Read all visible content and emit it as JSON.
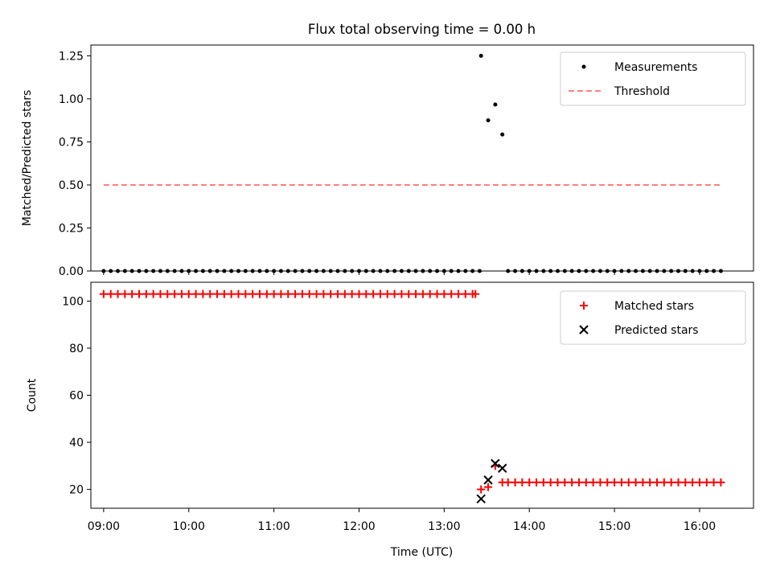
{
  "figure": {
    "title": "Flux total observing time = 0.00 h"
  },
  "chart_data": [
    {
      "type": "scatter",
      "panel": "top",
      "ylabel": "Matched/Predicted stars",
      "xlabel": "",
      "ylim": [
        0,
        1.3125
      ],
      "xlim": [
        "08:51",
        "16:38"
      ],
      "yticks": [
        0.0,
        0.25,
        0.5,
        0.75,
        1.0,
        1.25
      ],
      "ytick_labels": [
        "0.00",
        "0.25",
        "0.50",
        "0.75",
        "1.00",
        "1.25"
      ],
      "legend_position": "top-right",
      "grid": false,
      "series": [
        {
          "name": "Measurements",
          "kind": "points",
          "color": "#000000",
          "points": [
            {
              "x": "09:00",
              "y": 0
            },
            {
              "x": "09:05",
              "y": 0
            },
            {
              "x": "09:10",
              "y": 0
            },
            {
              "x": "09:15",
              "y": 0
            },
            {
              "x": "09:20",
              "y": 0
            },
            {
              "x": "09:25",
              "y": 0
            },
            {
              "x": "09:30",
              "y": 0
            },
            {
              "x": "09:35",
              "y": 0
            },
            {
              "x": "09:40",
              "y": 0
            },
            {
              "x": "09:45",
              "y": 0
            },
            {
              "x": "09:50",
              "y": 0
            },
            {
              "x": "09:55",
              "y": 0
            },
            {
              "x": "10:00",
              "y": 0
            },
            {
              "x": "10:05",
              "y": 0
            },
            {
              "x": "10:10",
              "y": 0
            },
            {
              "x": "10:15",
              "y": 0
            },
            {
              "x": "10:20",
              "y": 0
            },
            {
              "x": "10:25",
              "y": 0
            },
            {
              "x": "10:30",
              "y": 0
            },
            {
              "x": "10:35",
              "y": 0
            },
            {
              "x": "10:40",
              "y": 0
            },
            {
              "x": "10:45",
              "y": 0
            },
            {
              "x": "10:50",
              "y": 0
            },
            {
              "x": "10:55",
              "y": 0
            },
            {
              "x": "11:00",
              "y": 0
            },
            {
              "x": "11:05",
              "y": 0
            },
            {
              "x": "11:10",
              "y": 0
            },
            {
              "x": "11:15",
              "y": 0
            },
            {
              "x": "11:20",
              "y": 0
            },
            {
              "x": "11:25",
              "y": 0
            },
            {
              "x": "11:30",
              "y": 0
            },
            {
              "x": "11:35",
              "y": 0
            },
            {
              "x": "11:40",
              "y": 0
            },
            {
              "x": "11:45",
              "y": 0
            },
            {
              "x": "11:50",
              "y": 0
            },
            {
              "x": "11:55",
              "y": 0
            },
            {
              "x": "12:00",
              "y": 0
            },
            {
              "x": "12:05",
              "y": 0
            },
            {
              "x": "12:10",
              "y": 0
            },
            {
              "x": "12:15",
              "y": 0
            },
            {
              "x": "12:20",
              "y": 0
            },
            {
              "x": "12:25",
              "y": 0
            },
            {
              "x": "12:30",
              "y": 0
            },
            {
              "x": "12:35",
              "y": 0
            },
            {
              "x": "12:40",
              "y": 0
            },
            {
              "x": "12:45",
              "y": 0
            },
            {
              "x": "12:50",
              "y": 0
            },
            {
              "x": "12:55",
              "y": 0
            },
            {
              "x": "13:00",
              "y": 0
            },
            {
              "x": "13:05",
              "y": 0
            },
            {
              "x": "13:10",
              "y": 0
            },
            {
              "x": "13:15",
              "y": 0
            },
            {
              "x": "13:20",
              "y": 0
            },
            {
              "x": "13:25",
              "y": 0
            },
            {
              "x": "13:26",
              "y": 1.25
            },
            {
              "x": "13:31",
              "y": 0.875
            },
            {
              "x": "13:36",
              "y": 0.967
            },
            {
              "x": "13:41",
              "y": 0.793
            },
            {
              "x": "13:45",
              "y": 0
            },
            {
              "x": "13:50",
              "y": 0
            },
            {
              "x": "13:55",
              "y": 0
            },
            {
              "x": "14:00",
              "y": 0
            },
            {
              "x": "14:05",
              "y": 0
            },
            {
              "x": "14:10",
              "y": 0
            },
            {
              "x": "14:15",
              "y": 0
            },
            {
              "x": "14:20",
              "y": 0
            },
            {
              "x": "14:25",
              "y": 0
            },
            {
              "x": "14:30",
              "y": 0
            },
            {
              "x": "14:35",
              "y": 0
            },
            {
              "x": "14:40",
              "y": 0
            },
            {
              "x": "14:45",
              "y": 0
            },
            {
              "x": "14:50",
              "y": 0
            },
            {
              "x": "14:55",
              "y": 0
            },
            {
              "x": "15:00",
              "y": 0
            },
            {
              "x": "15:05",
              "y": 0
            },
            {
              "x": "15:10",
              "y": 0
            },
            {
              "x": "15:15",
              "y": 0
            },
            {
              "x": "15:20",
              "y": 0
            },
            {
              "x": "15:25",
              "y": 0
            },
            {
              "x": "15:30",
              "y": 0
            },
            {
              "x": "15:35",
              "y": 0
            },
            {
              "x": "15:40",
              "y": 0
            },
            {
              "x": "15:45",
              "y": 0
            },
            {
              "x": "15:50",
              "y": 0
            },
            {
              "x": "15:55",
              "y": 0
            },
            {
              "x": "16:00",
              "y": 0
            },
            {
              "x": "16:05",
              "y": 0
            },
            {
              "x": "16:10",
              "y": 0
            },
            {
              "x": "16:15",
              "y": 0
            }
          ]
        },
        {
          "name": "Threshold",
          "kind": "dashed-line",
          "color": "#ff7f7f",
          "points": [
            {
              "x": "09:00",
              "y": 0.5
            },
            {
              "x": "16:15",
              "y": 0.5
            }
          ]
        }
      ]
    },
    {
      "type": "scatter",
      "panel": "bottom",
      "xlabel": "Time (UTC)",
      "ylabel": "Count",
      "ylim": [
        12,
        108
      ],
      "xlim": [
        "08:51",
        "16:38"
      ],
      "yticks": [
        20,
        40,
        60,
        80,
        100
      ],
      "ytick_labels": [
        "20",
        "40",
        "60",
        "80",
        "100"
      ],
      "xticks": [
        "09:00",
        "10:00",
        "11:00",
        "12:00",
        "13:00",
        "14:00",
        "15:00",
        "16:00"
      ],
      "xtick_labels": [
        "09:00",
        "10:00",
        "11:00",
        "12:00",
        "13:00",
        "14:00",
        "15:00",
        "16:00"
      ],
      "legend_position": "top-right",
      "grid": false,
      "series": [
        {
          "name": "Matched stars",
          "kind": "plus",
          "color": "#ff0000",
          "points": [
            {
              "x": "09:00",
              "y": 103
            },
            {
              "x": "09:05",
              "y": 103
            },
            {
              "x": "09:10",
              "y": 103
            },
            {
              "x": "09:15",
              "y": 103
            },
            {
              "x": "09:20",
              "y": 103
            },
            {
              "x": "09:25",
              "y": 103
            },
            {
              "x": "09:30",
              "y": 103
            },
            {
              "x": "09:35",
              "y": 103
            },
            {
              "x": "09:40",
              "y": 103
            },
            {
              "x": "09:45",
              "y": 103
            },
            {
              "x": "09:50",
              "y": 103
            },
            {
              "x": "09:55",
              "y": 103
            },
            {
              "x": "10:00",
              "y": 103
            },
            {
              "x": "10:05",
              "y": 103
            },
            {
              "x": "10:10",
              "y": 103
            },
            {
              "x": "10:15",
              "y": 103
            },
            {
              "x": "10:20",
              "y": 103
            },
            {
              "x": "10:25",
              "y": 103
            },
            {
              "x": "10:30",
              "y": 103
            },
            {
              "x": "10:35",
              "y": 103
            },
            {
              "x": "10:40",
              "y": 103
            },
            {
              "x": "10:45",
              "y": 103
            },
            {
              "x": "10:50",
              "y": 103
            },
            {
              "x": "10:55",
              "y": 103
            },
            {
              "x": "11:00",
              "y": 103
            },
            {
              "x": "11:05",
              "y": 103
            },
            {
              "x": "11:10",
              "y": 103
            },
            {
              "x": "11:15",
              "y": 103
            },
            {
              "x": "11:20",
              "y": 103
            },
            {
              "x": "11:25",
              "y": 103
            },
            {
              "x": "11:30",
              "y": 103
            },
            {
              "x": "11:35",
              "y": 103
            },
            {
              "x": "11:40",
              "y": 103
            },
            {
              "x": "11:45",
              "y": 103
            },
            {
              "x": "11:50",
              "y": 103
            },
            {
              "x": "11:55",
              "y": 103
            },
            {
              "x": "12:00",
              "y": 103
            },
            {
              "x": "12:05",
              "y": 103
            },
            {
              "x": "12:10",
              "y": 103
            },
            {
              "x": "12:15",
              "y": 103
            },
            {
              "x": "12:20",
              "y": 103
            },
            {
              "x": "12:25",
              "y": 103
            },
            {
              "x": "12:30",
              "y": 103
            },
            {
              "x": "12:35",
              "y": 103
            },
            {
              "x": "12:40",
              "y": 103
            },
            {
              "x": "12:45",
              "y": 103
            },
            {
              "x": "12:50",
              "y": 103
            },
            {
              "x": "12:55",
              "y": 103
            },
            {
              "x": "13:00",
              "y": 103
            },
            {
              "x": "13:05",
              "y": 103
            },
            {
              "x": "13:10",
              "y": 103
            },
            {
              "x": "13:15",
              "y": 103
            },
            {
              "x": "13:20",
              "y": 103
            },
            {
              "x": "13:22",
              "y": 103
            },
            {
              "x": "13:26",
              "y": 20
            },
            {
              "x": "13:31",
              "y": 21
            },
            {
              "x": "13:36",
              "y": 30
            },
            {
              "x": "13:41",
              "y": 23
            },
            {
              "x": "13:45",
              "y": 23
            },
            {
              "x": "13:50",
              "y": 23
            },
            {
              "x": "13:55",
              "y": 23
            },
            {
              "x": "14:00",
              "y": 23
            },
            {
              "x": "14:05",
              "y": 23
            },
            {
              "x": "14:10",
              "y": 23
            },
            {
              "x": "14:15",
              "y": 23
            },
            {
              "x": "14:20",
              "y": 23
            },
            {
              "x": "14:25",
              "y": 23
            },
            {
              "x": "14:30",
              "y": 23
            },
            {
              "x": "14:35",
              "y": 23
            },
            {
              "x": "14:40",
              "y": 23
            },
            {
              "x": "14:45",
              "y": 23
            },
            {
              "x": "14:50",
              "y": 23
            },
            {
              "x": "14:55",
              "y": 23
            },
            {
              "x": "15:00",
              "y": 23
            },
            {
              "x": "15:05",
              "y": 23
            },
            {
              "x": "15:10",
              "y": 23
            },
            {
              "x": "15:15",
              "y": 23
            },
            {
              "x": "15:20",
              "y": 23
            },
            {
              "x": "15:25",
              "y": 23
            },
            {
              "x": "15:30",
              "y": 23
            },
            {
              "x": "15:35",
              "y": 23
            },
            {
              "x": "15:40",
              "y": 23
            },
            {
              "x": "15:45",
              "y": 23
            },
            {
              "x": "15:50",
              "y": 23
            },
            {
              "x": "15:55",
              "y": 23
            },
            {
              "x": "16:00",
              "y": 23
            },
            {
              "x": "16:05",
              "y": 23
            },
            {
              "x": "16:10",
              "y": 23
            },
            {
              "x": "16:15",
              "y": 23
            }
          ]
        },
        {
          "name": "Predicted stars",
          "kind": "x",
          "color": "#000000",
          "points": [
            {
              "x": "13:26",
              "y": 16
            },
            {
              "x": "13:31",
              "y": 24
            },
            {
              "x": "13:36",
              "y": 31
            },
            {
              "x": "13:41",
              "y": 29
            }
          ]
        }
      ]
    }
  ]
}
